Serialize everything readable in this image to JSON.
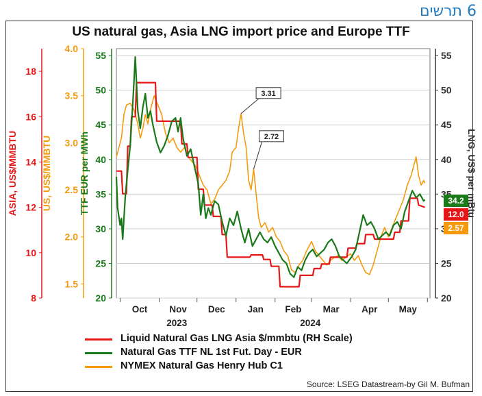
{
  "header": {
    "hebrew_label": "6 תרשים"
  },
  "chart_data": {
    "type": "line",
    "title": "US natural gas, Asia LNG import price and Europe TTF",
    "months": [
      "Oct",
      "Nov",
      "Dec",
      "Jan",
      "Feb",
      "Mar",
      "Apr",
      "May"
    ],
    "years": [
      "2023",
      "2024"
    ],
    "x_range": [
      "2023-09-28",
      "2024-06-03"
    ],
    "axes": {
      "ttf": {
        "label": "TTF EUR per MWh",
        "range": [
          20,
          56
        ],
        "ticks": [
          20,
          25,
          30,
          35,
          40,
          45,
          50,
          55
        ]
      },
      "asia": {
        "label": "ASIA, US$/MMBTU",
        "range": [
          8,
          19
        ],
        "ticks": [
          8,
          10,
          12,
          14,
          16,
          18
        ]
      },
      "us": {
        "label": "US, US$/MMBTU",
        "range": [
          1.35,
          4.0
        ],
        "ticks": [
          1.5,
          2.0,
          2.5,
          3.0,
          3.5,
          4.0
        ]
      },
      "lng": {
        "label": "LNG, US$ per mBtu",
        "range": [
          20,
          56
        ],
        "ticks": [
          20,
          25,
          30,
          35,
          40,
          45,
          50,
          55
        ]
      }
    },
    "annotations": [
      {
        "text": "3.31",
        "series": "us",
        "date": "2024-01-05"
      },
      {
        "text": "2.72",
        "series": "us",
        "date": "2024-01-15"
      }
    ],
    "end_badges": [
      {
        "text": "34.2",
        "color": "#1a7a1a"
      },
      {
        "text": "12.0",
        "color": "#e81717"
      },
      {
        "text": "2.57",
        "color": "#f59a0c"
      }
    ],
    "series": [
      {
        "name": "Liquid Natural Gas LNG Asia $/mmbtu (RH Scale)",
        "key": "asia",
        "color": "#e81717",
        "points": [
          [
            "2023-09-28",
            13.6
          ],
          [
            "2023-10-02",
            13.6
          ],
          [
            "2023-10-03",
            12.6
          ],
          [
            "2023-10-06",
            12.6
          ],
          [
            "2023-10-07",
            14.7
          ],
          [
            "2023-10-09",
            14.7
          ],
          [
            "2023-10-10",
            16.0
          ],
          [
            "2023-10-13",
            16.0
          ],
          [
            "2023-10-14",
            17.5
          ],
          [
            "2023-10-29",
            17.5
          ],
          [
            "2023-10-30",
            15.8
          ],
          [
            "2023-11-18",
            15.8
          ],
          [
            "2023-11-19",
            14.8
          ],
          [
            "2023-11-23",
            14.8
          ],
          [
            "2023-11-24",
            14.2
          ],
          [
            "2023-12-01",
            14.2
          ],
          [
            "2023-12-02",
            12.8
          ],
          [
            "2023-12-06",
            12.8
          ],
          [
            "2023-12-07",
            12.1
          ],
          [
            "2023-12-13",
            12.1
          ],
          [
            "2023-12-14",
            11.6
          ],
          [
            "2023-12-20",
            11.6
          ],
          [
            "2023-12-21",
            10.8
          ],
          [
            "2023-12-24",
            10.8
          ],
          [
            "2023-12-25",
            9.8
          ],
          [
            "2024-01-12",
            9.8
          ],
          [
            "2024-01-13",
            9.9
          ],
          [
            "2024-01-22",
            9.9
          ],
          [
            "2024-01-23",
            9.7
          ],
          [
            "2024-01-28",
            9.7
          ],
          [
            "2024-01-29",
            9.4
          ],
          [
            "2024-02-04",
            9.4
          ],
          [
            "2024-02-05",
            8.5
          ],
          [
            "2024-02-20",
            8.5
          ],
          [
            "2024-02-21",
            9.0
          ],
          [
            "2024-03-02",
            9.0
          ],
          [
            "2024-03-03",
            9.3
          ],
          [
            "2024-03-08",
            9.3
          ],
          [
            "2024-03-09",
            9.5
          ],
          [
            "2024-03-15",
            9.5
          ],
          [
            "2024-03-16",
            9.8
          ],
          [
            "2024-03-29",
            9.8
          ],
          [
            "2024-03-30",
            10.2
          ],
          [
            "2024-04-05",
            10.2
          ],
          [
            "2024-04-06",
            10.4
          ],
          [
            "2024-04-12",
            10.4
          ],
          [
            "2024-04-13",
            10.8
          ],
          [
            "2024-04-19",
            10.8
          ],
          [
            "2024-04-20",
            10.6
          ],
          [
            "2024-05-05",
            10.6
          ],
          [
            "2024-05-06",
            10.9
          ],
          [
            "2024-05-10",
            10.9
          ],
          [
            "2024-05-11",
            11.4
          ],
          [
            "2024-05-17",
            11.4
          ],
          [
            "2024-05-18",
            12.4
          ],
          [
            "2024-05-24",
            12.4
          ],
          [
            "2024-05-25",
            12.1
          ],
          [
            "2024-05-30",
            12.0
          ]
        ]
      },
      {
        "name": "Natural Gas TTF NL 1st Fut. Day - EUR",
        "key": "ttf",
        "color": "#1a7a1a",
        "points": [
          [
            "2023-09-28",
            37.5
          ],
          [
            "2023-09-29",
            33.0
          ],
          [
            "2023-10-01",
            30.5
          ],
          [
            "2023-10-02",
            31.5
          ],
          [
            "2023-10-03",
            28.5
          ],
          [
            "2023-10-05",
            34.5
          ],
          [
            "2023-10-07",
            38.5
          ],
          [
            "2023-10-09",
            42.0
          ],
          [
            "2023-10-11",
            48.0
          ],
          [
            "2023-10-13",
            54.8
          ],
          [
            "2023-10-15",
            47.0
          ],
          [
            "2023-10-17",
            44.5
          ],
          [
            "2023-10-19",
            47.5
          ],
          [
            "2023-10-21",
            49.5
          ],
          [
            "2023-10-23",
            46.0
          ],
          [
            "2023-10-25",
            47.0
          ],
          [
            "2023-10-27",
            45.0
          ],
          [
            "2023-10-30",
            42.5
          ],
          [
            "2023-11-02",
            41.0
          ],
          [
            "2023-11-05",
            42.0
          ],
          [
            "2023-11-08",
            43.5
          ],
          [
            "2023-11-11",
            45.5
          ],
          [
            "2023-11-14",
            46.0
          ],
          [
            "2023-11-16",
            44.0
          ],
          [
            "2023-11-18",
            46.0
          ],
          [
            "2023-11-20",
            43.0
          ],
          [
            "2023-11-23",
            40.5
          ],
          [
            "2023-11-26",
            41.5
          ],
          [
            "2023-11-29",
            39.0
          ],
          [
            "2023-12-02",
            36.5
          ],
          [
            "2023-12-04",
            32.0
          ],
          [
            "2023-12-06",
            35.0
          ],
          [
            "2023-12-08",
            31.5
          ],
          [
            "2023-12-10",
            33.0
          ],
          [
            "2023-12-12",
            32.0
          ],
          [
            "2023-12-15",
            34.0
          ],
          [
            "2023-12-18",
            33.5
          ],
          [
            "2023-12-21",
            31.0
          ],
          [
            "2023-12-24",
            29.0
          ],
          [
            "2023-12-27",
            31.5
          ],
          [
            "2023-12-30",
            30.5
          ],
          [
            "2024-01-02",
            32.5
          ],
          [
            "2024-01-05",
            30.0
          ],
          [
            "2024-01-08",
            28.0
          ],
          [
            "2024-01-11",
            30.0
          ],
          [
            "2024-01-14",
            27.5
          ],
          [
            "2024-01-17",
            28.5
          ],
          [
            "2024-01-20",
            29.5
          ],
          [
            "2024-01-23",
            28.5
          ],
          [
            "2024-01-26",
            28.0
          ],
          [
            "2024-01-29",
            28.8
          ],
          [
            "2024-02-01",
            27.5
          ],
          [
            "2024-02-04",
            26.5
          ],
          [
            "2024-02-07",
            25.5
          ],
          [
            "2024-02-10",
            25.0
          ],
          [
            "2024-02-13",
            23.5
          ],
          [
            "2024-02-16",
            23.0
          ],
          [
            "2024-02-19",
            24.5
          ],
          [
            "2024-02-22",
            24.0
          ],
          [
            "2024-02-25",
            25.5
          ],
          [
            "2024-02-28",
            26.5
          ],
          [
            "2024-03-02",
            27.0
          ],
          [
            "2024-03-05",
            26.0
          ],
          [
            "2024-03-08",
            26.5
          ],
          [
            "2024-03-11",
            27.0
          ],
          [
            "2024-03-14",
            28.0
          ],
          [
            "2024-03-17",
            28.5
          ],
          [
            "2024-03-20",
            27.5
          ],
          [
            "2024-03-23",
            26.0
          ],
          [
            "2024-03-26",
            25.5
          ],
          [
            "2024-03-29",
            25.0
          ],
          [
            "2024-04-02",
            26.0
          ],
          [
            "2024-04-05",
            27.0
          ],
          [
            "2024-04-08",
            29.5
          ],
          [
            "2024-04-11",
            32.0
          ],
          [
            "2024-04-14",
            30.5
          ],
          [
            "2024-04-17",
            31.0
          ],
          [
            "2024-04-20",
            30.0
          ],
          [
            "2024-04-23",
            28.5
          ],
          [
            "2024-04-26",
            29.0
          ],
          [
            "2024-04-29",
            29.5
          ],
          [
            "2024-05-02",
            29.0
          ],
          [
            "2024-05-05",
            30.5
          ],
          [
            "2024-05-08",
            31.0
          ],
          [
            "2024-05-11",
            30.0
          ],
          [
            "2024-05-14",
            32.5
          ],
          [
            "2024-05-17",
            34.0
          ],
          [
            "2024-05-20",
            35.5
          ],
          [
            "2024-05-23",
            34.5
          ],
          [
            "2024-05-26",
            35.0
          ],
          [
            "2024-05-29",
            34.0
          ],
          [
            "2024-05-30",
            34.2
          ]
        ]
      },
      {
        "name": "NYMEX Natural Gas Henry Hub C1",
        "key": "us",
        "color": "#f59a0c",
        "points": [
          [
            "2023-09-28",
            2.85
          ],
          [
            "2023-09-30",
            2.95
          ],
          [
            "2023-10-02",
            3.05
          ],
          [
            "2023-10-04",
            3.3
          ],
          [
            "2023-10-06",
            3.4
          ],
          [
            "2023-10-09",
            3.42
          ],
          [
            "2023-10-12",
            3.35
          ],
          [
            "2023-10-15",
            3.2
          ],
          [
            "2023-10-17",
            3.05
          ],
          [
            "2023-10-19",
            3.15
          ],
          [
            "2023-10-21",
            3.3
          ],
          [
            "2023-10-23",
            3.2
          ],
          [
            "2023-10-25",
            3.35
          ],
          [
            "2023-10-28",
            3.5
          ],
          [
            "2023-10-31",
            3.4
          ],
          [
            "2023-11-03",
            3.3
          ],
          [
            "2023-11-06",
            3.1
          ],
          [
            "2023-11-09",
            3.0
          ],
          [
            "2023-11-12",
            3.05
          ],
          [
            "2023-11-15",
            2.95
          ],
          [
            "2023-11-18",
            2.9
          ],
          [
            "2023-11-21",
            2.95
          ],
          [
            "2023-11-24",
            2.85
          ],
          [
            "2023-11-27",
            2.8
          ],
          [
            "2023-11-30",
            2.75
          ],
          [
            "2023-12-03",
            2.65
          ],
          [
            "2023-12-06",
            2.55
          ],
          [
            "2023-12-09",
            2.5
          ],
          [
            "2023-12-12",
            2.35
          ],
          [
            "2023-12-15",
            2.4
          ],
          [
            "2023-12-18",
            2.5
          ],
          [
            "2023-12-21",
            2.55
          ],
          [
            "2023-12-24",
            2.6
          ],
          [
            "2023-12-27",
            2.7
          ],
          [
            "2023-12-29",
            2.9
          ],
          [
            "2024-01-01",
            2.95
          ],
          [
            "2024-01-03",
            3.15
          ],
          [
            "2024-01-05",
            3.31
          ],
          [
            "2024-01-07",
            3.1
          ],
          [
            "2024-01-09",
            2.95
          ],
          [
            "2024-01-11",
            2.6
          ],
          [
            "2024-01-13",
            2.5
          ],
          [
            "2024-01-15",
            2.72
          ],
          [
            "2024-01-17",
            2.45
          ],
          [
            "2024-01-19",
            2.2
          ],
          [
            "2024-01-21",
            2.1
          ],
          [
            "2024-01-24",
            2.15
          ],
          [
            "2024-01-27",
            2.05
          ],
          [
            "2024-01-30",
            2.1
          ],
          [
            "2024-02-02",
            2.0
          ],
          [
            "2024-02-05",
            1.95
          ],
          [
            "2024-02-08",
            1.85
          ],
          [
            "2024-02-11",
            1.8
          ],
          [
            "2024-02-14",
            1.65
          ],
          [
            "2024-02-17",
            1.62
          ],
          [
            "2024-02-20",
            1.7
          ],
          [
            "2024-02-23",
            1.75
          ],
          [
            "2024-02-26",
            1.85
          ],
          [
            "2024-03-01",
            1.95
          ],
          [
            "2024-03-04",
            1.85
          ],
          [
            "2024-03-07",
            1.8
          ],
          [
            "2024-03-10",
            1.75
          ],
          [
            "2024-03-13",
            1.7
          ],
          [
            "2024-03-16",
            1.75
          ],
          [
            "2024-03-19",
            1.78
          ],
          [
            "2024-03-22",
            1.8
          ],
          [
            "2024-03-25",
            1.75
          ],
          [
            "2024-03-28",
            1.78
          ],
          [
            "2024-04-01",
            1.82
          ],
          [
            "2024-04-04",
            1.75
          ],
          [
            "2024-04-07",
            1.8
          ],
          [
            "2024-04-10",
            1.7
          ],
          [
            "2024-04-13",
            1.62
          ],
          [
            "2024-04-16",
            1.6
          ],
          [
            "2024-04-19",
            1.7
          ],
          [
            "2024-04-22",
            1.85
          ],
          [
            "2024-04-25",
            2.0
          ],
          [
            "2024-04-28",
            2.1
          ],
          [
            "2024-05-01",
            2.0
          ],
          [
            "2024-05-04",
            2.1
          ],
          [
            "2024-05-07",
            2.2
          ],
          [
            "2024-05-10",
            2.3
          ],
          [
            "2024-05-13",
            2.4
          ],
          [
            "2024-05-16",
            2.55
          ],
          [
            "2024-05-19",
            2.65
          ],
          [
            "2024-05-21",
            2.75
          ],
          [
            "2024-05-23",
            2.85
          ],
          [
            "2024-05-25",
            2.65
          ],
          [
            "2024-05-27",
            2.55
          ],
          [
            "2024-05-29",
            2.6
          ],
          [
            "2024-05-30",
            2.57
          ]
        ]
      }
    ]
  },
  "footer": {
    "source": "Source: LSEG Datastream-by Gil M. Bufman"
  }
}
